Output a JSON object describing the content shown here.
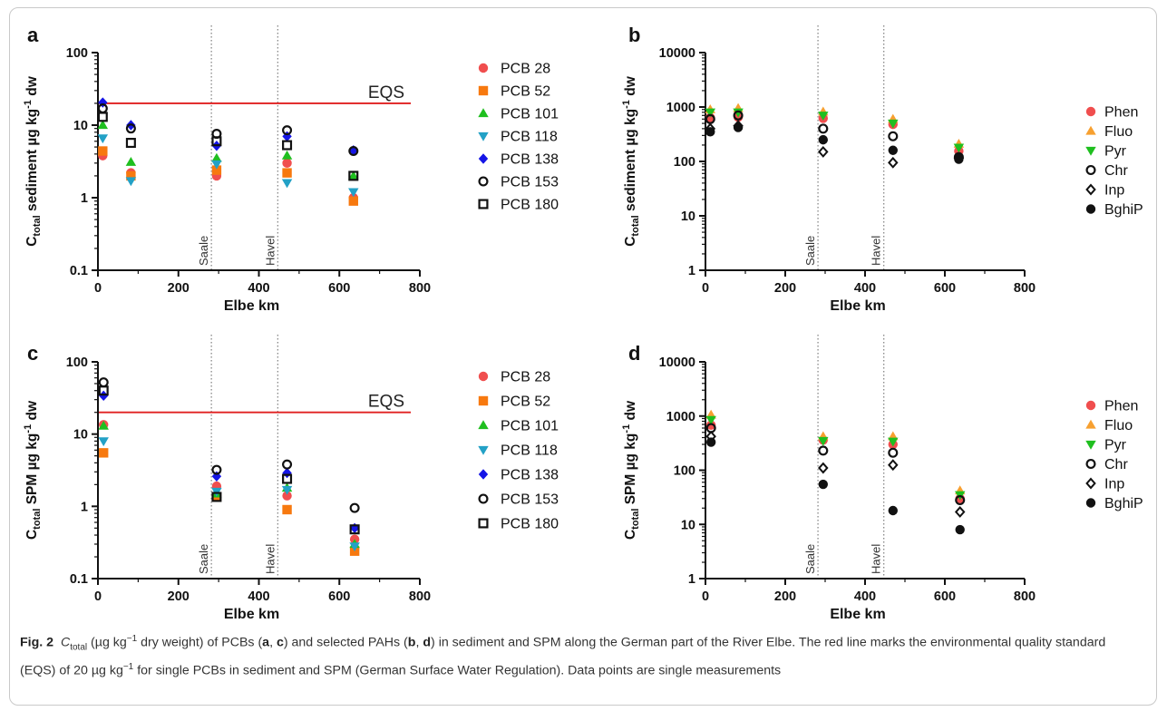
{
  "caption": {
    "label": "Fig. 2",
    "c_main": "C",
    "c_sub": "total",
    "part1": " (µg kg",
    "exp1": "−1",
    "part2": " dry weight) of PCBs (",
    "pa": "a",
    "sep1": ", ",
    "pc": "c",
    "part3": ") and selected PAHs (",
    "pb": "b",
    "sep2": ", ",
    "pd": "d",
    "part4": ") in sediment and SPM along the German part of the River Elbe. The red line marks the environmental quality standard (EQS) of 20 µg kg",
    "exp2": "−1",
    "part5": " for single PCBs in sediment and SPM (German Surface Water Regulation). Data points are single measurements"
  },
  "colors": {
    "red": "#f04e4e",
    "orange": "#f7790f",
    "green": "#1fbf1f",
    "teal": "#23a1c6",
    "blue": "#1515e6",
    "black": "#111111",
    "lightorange": "#f7a030",
    "eqs": "#e02020",
    "frame": "#c9c9c9"
  },
  "chart_data": [
    {
      "panel": "a",
      "type": "scatter",
      "y_scale": "log",
      "xlabel": "Elbe km",
      "ylabel_main": "C",
      "ylabel_sub": "total",
      "ylabel_rest": " sediment µg kg",
      "ylabel_exp": "-1",
      "ylabel_tail": " dw",
      "xlim": [
        0,
        800
      ],
      "ylim": [
        0.1,
        100
      ],
      "xticks": [
        "0",
        "200",
        "400",
        "600",
        "800"
      ],
      "yticks": [
        "0.1",
        "1",
        "10",
        "100"
      ],
      "hline": {
        "y": 20,
        "label": "EQS"
      },
      "vlines": [
        {
          "x": 282,
          "label": "Saale"
        },
        {
          "x": 447,
          "label": "Havel"
        }
      ],
      "series": [
        {
          "name": "PCB 28",
          "marker": "circle",
          "color": "red",
          "points": [
            [
              12,
              3.8
            ],
            [
              82,
              2.2
            ],
            [
              295,
              2.0
            ],
            [
              470,
              3.0
            ],
            [
              635,
              1.0
            ]
          ]
        },
        {
          "name": "PCB 52",
          "marker": "square",
          "color": "orange",
          "points": [
            [
              12,
              4.4
            ],
            [
              82,
              2.0
            ],
            [
              295,
              2.4
            ],
            [
              470,
              2.2
            ],
            [
              635,
              0.9
            ]
          ]
        },
        {
          "name": "PCB 101",
          "marker": "triangle-up",
          "color": "green",
          "points": [
            [
              12,
              10.0
            ],
            [
              82,
              3.1
            ],
            [
              295,
              3.5
            ],
            [
              470,
              3.8
            ],
            [
              635,
              2.0
            ]
          ]
        },
        {
          "name": "PCB 118",
          "marker": "triangle-down",
          "color": "teal",
          "points": [
            [
              12,
              6.6
            ],
            [
              82,
              1.7
            ],
            [
              295,
              2.9
            ],
            [
              470,
              1.6
            ],
            [
              635,
              1.2
            ]
          ]
        },
        {
          "name": "PCB 138",
          "marker": "diamond",
          "color": "blue",
          "points": [
            [
              12,
              20.5
            ],
            [
              82,
              10.0
            ],
            [
              295,
              5.2
            ],
            [
              470,
              7.0
            ],
            [
              635,
              4.5
            ]
          ]
        },
        {
          "name": "PCB 153",
          "marker": "circle-open",
          "color": "black",
          "points": [
            [
              12,
              17.0
            ],
            [
              82,
              9.0
            ],
            [
              295,
              7.6
            ],
            [
              470,
              8.5
            ],
            [
              635,
              4.4
            ]
          ]
        },
        {
          "name": "PCB 180",
          "marker": "square-open",
          "color": "black",
          "points": [
            [
              12,
              13.0
            ],
            [
              82,
              5.7
            ],
            [
              295,
              6.0
            ],
            [
              470,
              5.3
            ],
            [
              635,
              2.0
            ]
          ]
        }
      ]
    },
    {
      "panel": "b",
      "type": "scatter",
      "y_scale": "log",
      "xlabel": "Elbe km",
      "ylabel_main": "C",
      "ylabel_sub": "total",
      "ylabel_rest": " sediment µg kg",
      "ylabel_exp": "-1",
      "ylabel_tail": " dw",
      "xlim": [
        0,
        800
      ],
      "ylim": [
        1,
        10000
      ],
      "xticks": [
        "0",
        "200",
        "400",
        "600",
        "800"
      ],
      "yticks": [
        "1",
        "10",
        "100",
        "1000",
        "10000"
      ],
      "vlines": [
        {
          "x": 282,
          "label": "Saale"
        },
        {
          "x": 447,
          "label": "Havel"
        }
      ],
      "series": [
        {
          "name": "Phen",
          "marker": "circle",
          "color": "red",
          "points": [
            [
              12,
              640
            ],
            [
              82,
              650
            ],
            [
              295,
              620
            ],
            [
              470,
              480
            ],
            [
              635,
              155
            ]
          ]
        },
        {
          "name": "Fluo",
          "marker": "triangle-up",
          "color": "lightorange",
          "points": [
            [
              12,
              900
            ],
            [
              82,
              950
            ],
            [
              295,
              820
            ],
            [
              470,
              600
            ],
            [
              635,
              210
            ]
          ]
        },
        {
          "name": "Pyr",
          "marker": "triangle-down",
          "color": "green",
          "points": [
            [
              12,
              800
            ],
            [
              82,
              800
            ],
            [
              295,
              700
            ],
            [
              470,
              500
            ],
            [
              635,
              180
            ]
          ]
        },
        {
          "name": "Chr",
          "marker": "circle-open",
          "color": "black",
          "points": [
            [
              12,
              600
            ],
            [
              82,
              700
            ],
            [
              295,
              400
            ],
            [
              470,
              290
            ],
            [
              635,
              120
            ]
          ]
        },
        {
          "name": "Inp",
          "marker": "diamond-open",
          "color": "black",
          "points": [
            [
              12,
              400
            ],
            [
              82,
              450
            ],
            [
              295,
              150
            ],
            [
              470,
              95
            ],
            [
              635,
              115
            ]
          ]
        },
        {
          "name": "BghiP",
          "marker": "circle",
          "color": "black",
          "points": [
            [
              12,
              350
            ],
            [
              82,
              420
            ],
            [
              295,
              250
            ],
            [
              470,
              160
            ],
            [
              635,
              110
            ]
          ]
        }
      ]
    },
    {
      "panel": "c",
      "type": "scatter",
      "y_scale": "log",
      "xlabel": "Elbe km",
      "ylabel_main": "C",
      "ylabel_sub": "total",
      "ylabel_rest": " SPM µg kg",
      "ylabel_exp": "-1",
      "ylabel_tail": " dw",
      "xlim": [
        0,
        800
      ],
      "ylim": [
        0.1,
        100
      ],
      "xticks": [
        "0",
        "200",
        "400",
        "600",
        "800"
      ],
      "yticks": [
        "0.1",
        "1",
        "10",
        "100"
      ],
      "hline": {
        "y": 20,
        "label": "EQS"
      },
      "vlines": [
        {
          "x": 282,
          "label": "Saale"
        },
        {
          "x": 447,
          "label": "Havel"
        }
      ],
      "series": [
        {
          "name": "PCB 28",
          "marker": "circle",
          "color": "red",
          "points": [
            [
              14,
              13.5
            ],
            [
              295,
              1.9
            ],
            [
              470,
              1.4
            ],
            [
              638,
              0.35
            ]
          ]
        },
        {
          "name": "PCB 52",
          "marker": "square",
          "color": "orange",
          "points": [
            [
              14,
              5.5
            ],
            [
              295,
              1.35
            ],
            [
              470,
              0.9
            ],
            [
              638,
              0.24
            ]
          ]
        },
        {
          "name": "PCB 101",
          "marker": "triangle-up",
          "color": "green",
          "points": [
            [
              14,
              13.0
            ],
            [
              295,
              1.5
            ],
            [
              470,
              1.8
            ],
            [
              638,
              0.3
            ]
          ]
        },
        {
          "name": "PCB 118",
          "marker": "triangle-down",
          "color": "teal",
          "points": [
            [
              14,
              8.0
            ],
            [
              295,
              1.6
            ],
            [
              470,
              1.7
            ],
            [
              638,
              0.28
            ]
          ]
        },
        {
          "name": "PCB 138",
          "marker": "diamond",
          "color": "blue",
          "points": [
            [
              14,
              34.0
            ],
            [
              295,
              2.6
            ],
            [
              470,
              2.9
            ],
            [
              638,
              0.5
            ]
          ]
        },
        {
          "name": "PCB 153",
          "marker": "circle-open",
          "color": "black",
          "points": [
            [
              14,
              52.0
            ],
            [
              295,
              3.2
            ],
            [
              470,
              3.8
            ],
            [
              638,
              0.95
            ]
          ]
        },
        {
          "name": "PCB 180",
          "marker": "square-open",
          "color": "black",
          "points": [
            [
              14,
              40.0
            ],
            [
              295,
              1.35
            ],
            [
              470,
              2.4
            ],
            [
              638,
              0.48
            ]
          ]
        }
      ]
    },
    {
      "panel": "d",
      "type": "scatter",
      "y_scale": "log",
      "xlabel": "Elbe km",
      "ylabel_main": "C",
      "ylabel_sub": "total",
      "ylabel_rest": " SPM µg kg",
      "ylabel_exp": "-1",
      "ylabel_tail": " dw",
      "xlim": [
        0,
        800
      ],
      "ylim": [
        1,
        10000
      ],
      "xticks": [
        "0",
        "200",
        "400",
        "600",
        "800"
      ],
      "yticks": [
        "1",
        "10",
        "100",
        "1000",
        "10000"
      ],
      "vlines": [
        {
          "x": 282,
          "label": "Saale"
        },
        {
          "x": 447,
          "label": "Havel"
        }
      ],
      "series": [
        {
          "name": "Phen",
          "marker": "circle",
          "color": "red",
          "points": [
            [
              14,
              680
            ],
            [
              295,
              360
            ],
            [
              470,
              300
            ],
            [
              638,
              30
            ]
          ]
        },
        {
          "name": "Fluo",
          "marker": "triangle-up",
          "color": "lightorange",
          "points": [
            [
              14,
              1050
            ],
            [
              295,
              420
            ],
            [
              470,
              420
            ],
            [
              638,
              42
            ]
          ]
        },
        {
          "name": "Pyr",
          "marker": "triangle-down",
          "color": "green",
          "points": [
            [
              14,
              850
            ],
            [
              295,
              350
            ],
            [
              470,
              340
            ],
            [
              638,
              35
            ]
          ]
        },
        {
          "name": "Chr",
          "marker": "circle-open",
          "color": "black",
          "points": [
            [
              14,
              600
            ],
            [
              295,
              230
            ],
            [
              470,
              210
            ],
            [
              638,
              28
            ]
          ]
        },
        {
          "name": "Inp",
          "marker": "diamond-open",
          "color": "black",
          "points": [
            [
              14,
              420
            ],
            [
              295,
              110
            ],
            [
              470,
              125
            ],
            [
              638,
              17
            ]
          ]
        },
        {
          "name": "BghiP",
          "marker": "circle",
          "color": "black",
          "points": [
            [
              14,
              330
            ],
            [
              295,
              55
            ],
            [
              470,
              18
            ],
            [
              638,
              8
            ]
          ]
        }
      ]
    }
  ]
}
